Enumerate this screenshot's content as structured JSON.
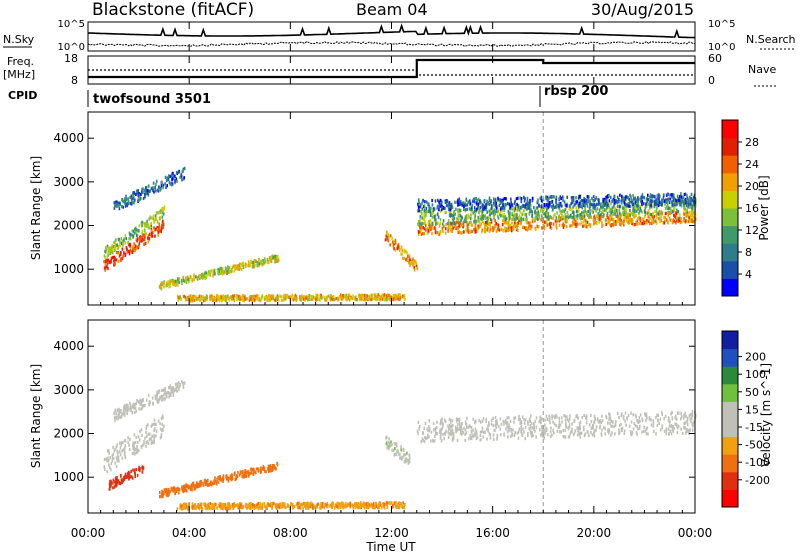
{
  "header": {
    "station": "Blackstone (fitACF)",
    "beam": "Beam 04",
    "date": "30/Aug/2015"
  },
  "side_labels": {
    "nsky": "N.Sky",
    "nsearch": "N.Search",
    "freq": "Freq.",
    "freq_unit": "[MHz]",
    "nave": "Nave",
    "cpid": "CPID"
  },
  "top_axis": {
    "noise_ticks_left": [
      "10^5",
      "10^0"
    ],
    "noise_ticks_right": [
      "10^5",
      "10^0"
    ],
    "freq_ticks": [
      "18",
      "8"
    ],
    "nave_ticks": [
      "60",
      "0"
    ]
  },
  "cpid_programs": [
    {
      "label": "twofsound 3501",
      "start_hour": 0
    },
    {
      "label": "rbsp 200",
      "start_hour": 18
    }
  ],
  "colors": {
    "power_scale": [
      "#0000ff",
      "#1a4fa8",
      "#2f7d8a",
      "#3f9a6a",
      "#7dbf3a",
      "#c8d000",
      "#f0a000",
      "#f06000",
      "#e02000",
      "#ff0000"
    ],
    "velocity_scale": [
      "#1020a0",
      "#2050c0",
      "#2a8a3a",
      "#70c040",
      "#c0c0b8",
      "#c0c0b8",
      "#f0a010",
      "#f07010",
      "#e03010",
      "#ff0000"
    ]
  },
  "chart_data": [
    {
      "type": "heatmap",
      "name": "power",
      "ylabel": "Slant Range [km]",
      "ylim": [
        180,
        4600
      ],
      "yticks": [
        1000,
        2000,
        3000,
        4000
      ],
      "xlim": [
        0,
        24
      ],
      "colorbar": {
        "label": "Power [dB]",
        "ticks": [
          4,
          8,
          12,
          16,
          20,
          24,
          28
        ],
        "range": [
          0,
          32
        ]
      },
      "scatter_bands": [
        {
          "t0": 0.6,
          "t1": 3.0,
          "r_start": 1050,
          "r_end": 2000,
          "width": 260,
          "value": 26
        },
        {
          "t0": 0.6,
          "t1": 3.0,
          "r_start": 1350,
          "r_end": 2300,
          "width": 250,
          "value": 14
        },
        {
          "t0": 1.0,
          "t1": 3.8,
          "r_start": 2400,
          "r_end": 3200,
          "width": 260,
          "value": 7
        },
        {
          "t0": 2.8,
          "t1": 7.5,
          "r_start": 600,
          "r_end": 1250,
          "width": 150,
          "value": 16
        },
        {
          "t0": 3.5,
          "t1": 12.5,
          "r_start": 320,
          "r_end": 350,
          "width": 120,
          "value": 20
        },
        {
          "t0": 11.7,
          "t1": 13.0,
          "r_start": 1800,
          "r_end": 1000,
          "width": 240,
          "value": 22
        },
        {
          "t0": 13.0,
          "t1": 24.0,
          "r_start": 1900,
          "r_end": 2200,
          "width": 260,
          "value": 22
        },
        {
          "t0": 13.0,
          "t1": 24.0,
          "r_start": 2150,
          "r_end": 2450,
          "width": 320,
          "value": 13
        },
        {
          "t0": 13.0,
          "t1": 24.0,
          "r_start": 2450,
          "r_end": 2600,
          "width": 260,
          "value": 6
        }
      ]
    },
    {
      "type": "heatmap",
      "name": "velocity",
      "ylabel": "Slant Range [km]",
      "xlabel": "Time UT",
      "ylim": [
        180,
        4600
      ],
      "yticks": [
        1000,
        2000,
        3000,
        4000
      ],
      "xlim": [
        0,
        24
      ],
      "xticks": [
        "00:00",
        "04:00",
        "08:00",
        "12:00",
        "16:00",
        "20:00",
        "00:00"
      ],
      "colorbar": {
        "label": "Velocity [m s^-1]",
        "ticks": [
          200,
          100,
          50,
          15,
          -15,
          -50,
          -100,
          -200
        ],
        "range": [
          -250,
          250
        ]
      },
      "scatter_bands": [
        {
          "t0": 0.6,
          "t1": 3.0,
          "r_start": 1300,
          "r_end": 2200,
          "width": 500,
          "value": 0
        },
        {
          "t0": 0.8,
          "t1": 2.2,
          "r_start": 800,
          "r_end": 1200,
          "width": 200,
          "value": -120
        },
        {
          "t0": 1.0,
          "t1": 3.8,
          "r_start": 2400,
          "r_end": 3100,
          "width": 260,
          "value": 0
        },
        {
          "t0": 2.8,
          "t1": 7.5,
          "r_start": 600,
          "r_end": 1250,
          "width": 150,
          "value": -70
        },
        {
          "t0": 3.5,
          "t1": 12.5,
          "r_start": 320,
          "r_end": 350,
          "width": 120,
          "value": -40
        },
        {
          "t0": 11.7,
          "t1": 12.7,
          "r_start": 1800,
          "r_end": 1400,
          "width": 300,
          "value": 40
        },
        {
          "t0": 13.0,
          "t1": 24.0,
          "r_start": 2050,
          "r_end": 2250,
          "width": 520,
          "value": 0
        }
      ]
    }
  ]
}
